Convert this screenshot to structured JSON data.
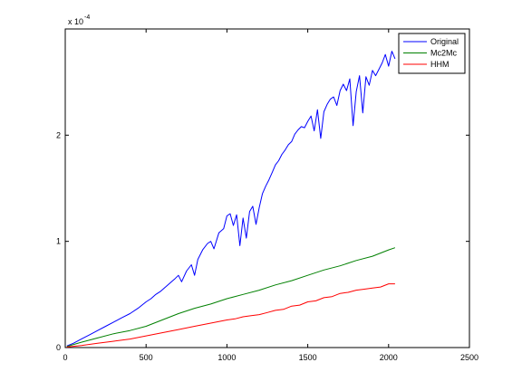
{
  "chart_data": {
    "type": "line",
    "title": "",
    "xlabel": "",
    "ylabel": "",
    "xlim": [
      0,
      2500
    ],
    "ylim": [
      0,
      0.0003
    ],
    "x_ticks": [
      0,
      500,
      1000,
      1500,
      2000,
      2500
    ],
    "x_tick_labels": [
      "0",
      "500",
      "1000",
      "1500",
      "2000",
      "2500"
    ],
    "y_ticks": [
      0,
      0.0001,
      0.0002
    ],
    "y_tick_labels": [
      "0",
      "1",
      "2"
    ],
    "y_exponent_label": {
      "base": "x 10",
      "exponent": "-4"
    },
    "grid": false,
    "legend_position": "top-right",
    "series": [
      {
        "name": "Original",
        "color": "#0000ff",
        "x": [
          10,
          50,
          100,
          150,
          200,
          250,
          300,
          350,
          400,
          450,
          500,
          530,
          560,
          590,
          620,
          650,
          680,
          700,
          720,
          750,
          780,
          800,
          820,
          850,
          880,
          900,
          920,
          950,
          980,
          1000,
          1020,
          1040,
          1060,
          1080,
          1100,
          1120,
          1140,
          1160,
          1180,
          1200,
          1220,
          1240,
          1260,
          1280,
          1300,
          1320,
          1340,
          1360,
          1380,
          1400,
          1420,
          1440,
          1460,
          1480,
          1500,
          1520,
          1540,
          1560,
          1580,
          1600,
          1620,
          1640,
          1660,
          1680,
          1700,
          1720,
          1740,
          1760,
          1780,
          1800,
          1820,
          1840,
          1860,
          1880,
          1900,
          1920,
          1940,
          1960,
          1980,
          2000,
          2020,
          2040
        ],
        "y": [
          1.5e-06,
          4e-06,
          8e-06,
          1.2e-05,
          1.6e-05,
          2e-05,
          2.4e-05,
          2.8e-05,
          3.2e-05,
          3.7e-05,
          4.3e-05,
          4.6e-05,
          5e-05,
          5.3e-05,
          5.7e-05,
          6.1e-05,
          6.5e-05,
          6.8e-05,
          6.2e-05,
          7.2e-05,
          7.8e-05,
          6.8e-05,
          8.3e-05,
          9.2e-05,
          9.8e-05,
          0.0001,
          9.3e-05,
          0.000108,
          0.000112,
          0.000124,
          0.000126,
          0.000115,
          0.000125,
          9.6e-05,
          0.000122,
          0.000103,
          0.000128,
          0.000133,
          0.000116,
          0.000132,
          0.000145,
          0.000152,
          0.000158,
          0.000165,
          0.000172,
          0.000176,
          0.000182,
          0.000186,
          0.000191,
          0.000194,
          0.000201,
          0.000205,
          0.000208,
          0.000207,
          0.000213,
          0.000218,
          0.000204,
          0.000224,
          0.000197,
          0.000222,
          0.000229,
          0.000234,
          0.000236,
          0.000228,
          0.000242,
          0.000248,
          0.000242,
          0.000253,
          0.000209,
          0.000241,
          0.000256,
          0.000221,
          0.000255,
          0.000247,
          0.000261,
          0.000256,
          0.000262,
          0.000268,
          0.000276,
          0.000265,
          0.000279,
          0.000272
        ]
      },
      {
        "name": "Mc2Mc",
        "color": "#008000",
        "x": [
          10,
          100,
          200,
          300,
          400,
          500,
          600,
          700,
          800,
          900,
          1000,
          1100,
          1200,
          1300,
          1400,
          1500,
          1600,
          1700,
          1800,
          1900,
          2000,
          2040
        ],
        "y": [
          1e-06,
          5e-06,
          9e-06,
          1.3e-05,
          1.6e-05,
          2e-05,
          2.6e-05,
          3.2e-05,
          3.7e-05,
          4.1e-05,
          4.6e-05,
          5e-05,
          5.4e-05,
          5.9e-05,
          6.3e-05,
          6.8e-05,
          7.3e-05,
          7.7e-05,
          8.2e-05,
          8.6e-05,
          9.2e-05,
          9.4e-05
        ]
      },
      {
        "name": "HHM",
        "color": "#ff0000",
        "x": [
          10,
          100,
          200,
          300,
          400,
          500,
          600,
          700,
          800,
          900,
          1000,
          1050,
          1100,
          1150,
          1200,
          1250,
          1300,
          1350,
          1400,
          1450,
          1500,
          1550,
          1600,
          1650,
          1700,
          1750,
          1800,
          1850,
          1900,
          1950,
          2000,
          2040
        ],
        "y": [
          5e-07,
          2e-06,
          4e-06,
          6e-06,
          8e-06,
          1.1e-05,
          1.4e-05,
          1.7e-05,
          2e-05,
          2.3e-05,
          2.6e-05,
          2.7e-05,
          2.9e-05,
          3e-05,
          3.1e-05,
          3.3e-05,
          3.5e-05,
          3.6e-05,
          3.9e-05,
          4e-05,
          4.3e-05,
          4.4e-05,
          4.7e-05,
          4.8e-05,
          5.1e-05,
          5.2e-05,
          5.4e-05,
          5.5e-05,
          5.6e-05,
          5.7e-05,
          6e-05,
          6e-05
        ]
      }
    ]
  }
}
